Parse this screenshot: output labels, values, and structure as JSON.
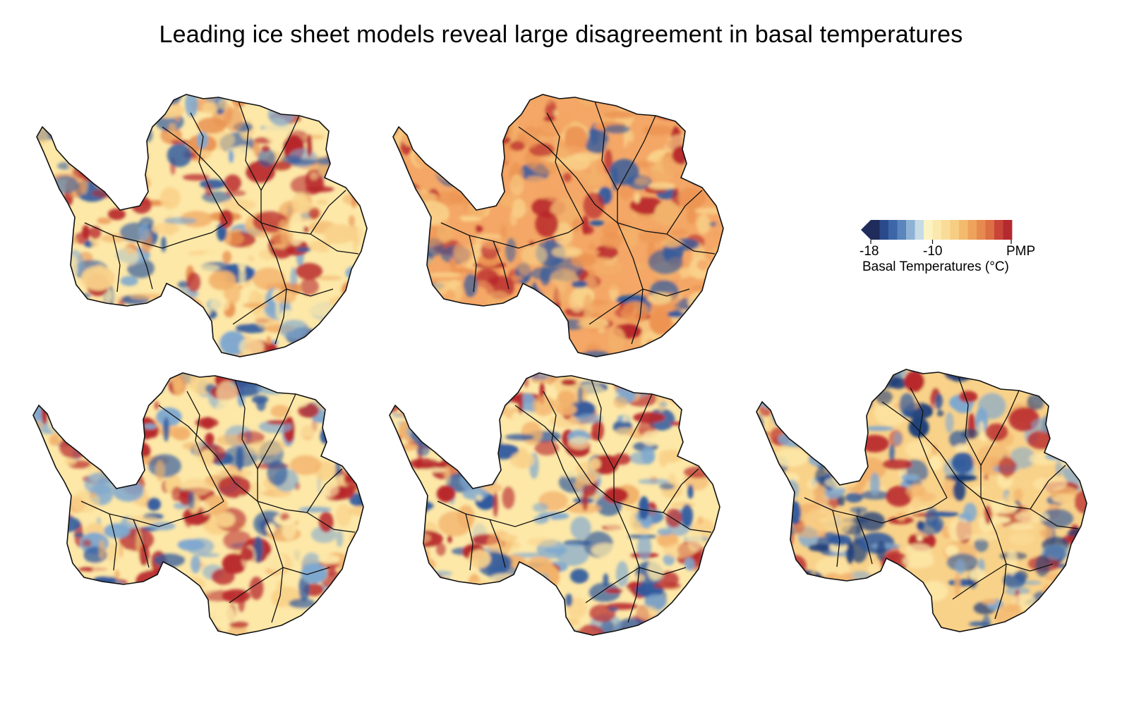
{
  "title": "Leading ice sheet models reveal large disagreement in basal temperatures",
  "legend": {
    "tick_min": "-18",
    "tick_mid": "-10",
    "tick_max": "PMP",
    "label": "Basal Temperatures (°C)",
    "colors": [
      "#1f2c5c",
      "#2a4a8c",
      "#3c66a8",
      "#5a85bd",
      "#8db2d4",
      "#c6dbe6",
      "#fbf3c4",
      "#fbe8ad",
      "#f9dc98",
      "#f7cd83",
      "#f3ba6e",
      "#eea35d",
      "#e78a4f",
      "#dc6f43",
      "#c9453a",
      "#b52a2f"
    ]
  },
  "panels": [
    {
      "palette": [
        "#fde8a8",
        "#f9d28a",
        "#f2b26b",
        "#e8904f",
        "#b8282c",
        "#2f5a9e",
        "#7fa8cf"
      ]
    },
    {
      "palette": [
        "#f4a766",
        "#ec9453",
        "#f2b26b",
        "#f9d28a",
        "#b8282c",
        "#2f5a9e"
      ]
    },
    {
      "palette": [
        "#fde8a8",
        "#f9d28a",
        "#f2b26b",
        "#b8282c",
        "#b8282c",
        "#2f5a9e",
        "#7fa8cf"
      ]
    },
    {
      "palette": [
        "#fde8a8",
        "#f9d28a",
        "#b8282c",
        "#b8282c",
        "#2f5a9e",
        "#7fa8cf",
        "#f2b26b"
      ]
    },
    {
      "palette": [
        "#f9d28a",
        "#f2b26b",
        "#b8282c",
        "#2f5a9e",
        "#1f3f7a",
        "#7fa8cf",
        "#fde8a8"
      ]
    }
  ]
}
